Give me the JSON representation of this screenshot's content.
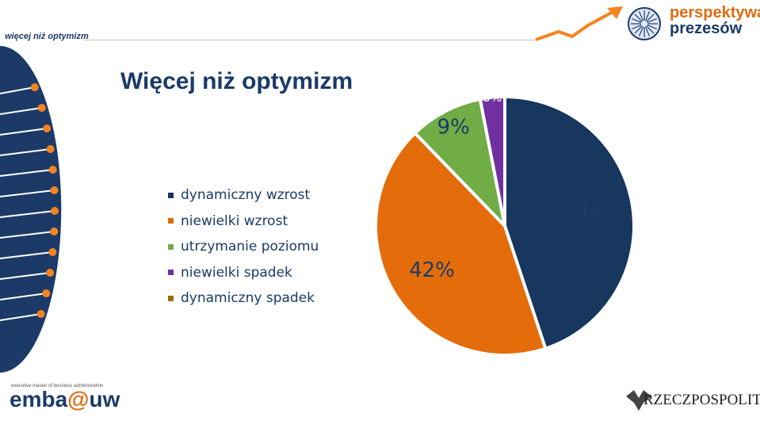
{
  "header": {
    "tag": "więcej niż optymizm",
    "title": "Więcej niż optymizm",
    "brand_line1": "perspektywa",
    "brand_line2": "prezesów"
  },
  "footer": {
    "left_small": "executive master of business administration",
    "left_main_part1": "emba",
    "left_main_at": "@",
    "left_main_part2": "uw",
    "right": "RZECZPOSPOLITA"
  },
  "colors": {
    "navy": "#17375e",
    "orange": "#e46c0a",
    "green": "#70ad47",
    "purple": "#7030a0",
    "olive": "#9c6a00",
    "accent_orange": "#f5841f",
    "title_blue": "#1b3a68"
  },
  "chart_data": {
    "type": "pie",
    "title": "",
    "legend_position": "left",
    "slices": [
      {
        "label": "dynamiczny wzrost",
        "value": 44,
        "value_label": "44%",
        "color": "#17375e"
      },
      {
        "label": "niewielki wzrost",
        "value": 42,
        "value_label": "42%",
        "color": "#e46c0a"
      },
      {
        "label": "utrzymanie poziomu",
        "value": 9,
        "value_label": "9%",
        "color": "#70ad47"
      },
      {
        "label": "niewielki spadek",
        "value": 3,
        "value_label": "3%",
        "color": "#7030a0"
      },
      {
        "label": "dynamiczny spadek",
        "value": 0,
        "value_label": "",
        "color": "#9c6a00"
      }
    ]
  }
}
